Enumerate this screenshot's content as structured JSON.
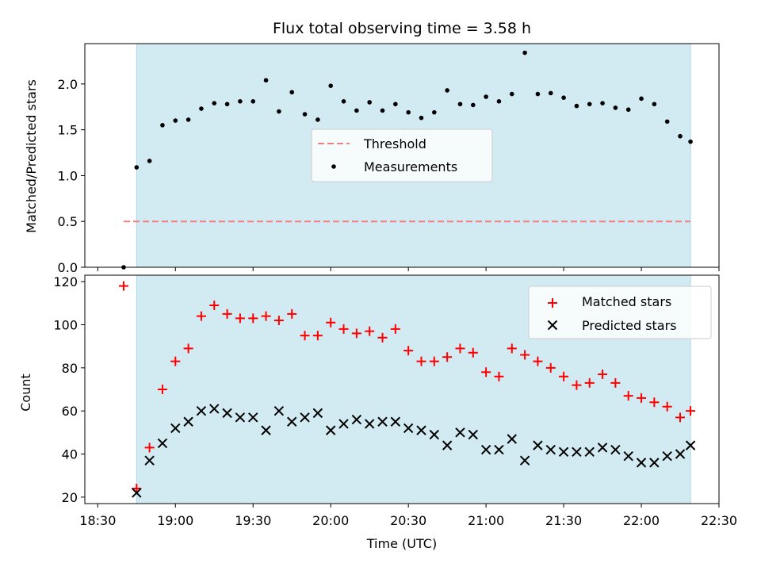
{
  "chart_data": [
    {
      "type": "scatter",
      "title": "Flux total observing time = 3.58 h",
      "ylabel": "Matched/Predicted stars",
      "xlim_minutes": [
        1105,
        1350
      ],
      "ylim": [
        0,
        2.44
      ],
      "yticks": [
        "0.0",
        "0.5",
        "1.0",
        "1.5",
        "2.0"
      ],
      "ytick_values": [
        0,
        0.5,
        1.0,
        1.5,
        2.0
      ],
      "shaded_range_minutes": [
        1125,
        1339
      ],
      "shade_color": "#add8e6",
      "threshold": {
        "name": "Threshold",
        "value": 0.5,
        "x_range_minutes": [
          1120,
          1339
        ],
        "color": "#f08080"
      },
      "legend": {
        "placement": "center",
        "entries": [
          "Threshold",
          "Measurements"
        ]
      },
      "series": [
        {
          "name": "Measurements",
          "color": "#000000",
          "x_minutes": [
            1120,
            1125,
            1130,
            1135,
            1140,
            1145,
            1150,
            1155,
            1160,
            1165,
            1170,
            1175,
            1180,
            1185,
            1190,
            1195,
            1200,
            1205,
            1210,
            1215,
            1220,
            1225,
            1230,
            1235,
            1240,
            1245,
            1250,
            1255,
            1260,
            1265,
            1270,
            1275,
            1280,
            1285,
            1290,
            1295,
            1300,
            1305,
            1310,
            1315,
            1320,
            1325,
            1330,
            1335,
            1339
          ],
          "values": [
            0.0,
            1.09,
            1.16,
            1.55,
            1.6,
            1.61,
            1.73,
            1.79,
            1.78,
            1.81,
            1.81,
            2.04,
            1.7,
            1.91,
            1.67,
            1.61,
            1.98,
            1.81,
            1.71,
            1.8,
            1.71,
            1.78,
            1.69,
            1.63,
            1.69,
            1.93,
            1.78,
            1.77,
            1.86,
            1.81,
            1.89,
            2.34,
            1.89,
            1.9,
            1.85,
            1.76,
            1.78,
            1.79,
            1.74,
            1.72,
            1.84,
            1.78,
            1.59,
            1.43,
            1.37
          ]
        }
      ]
    },
    {
      "type": "scatter",
      "xlabel": "Time (UTC)",
      "ylabel": "Count",
      "xlim_minutes": [
        1105,
        1350
      ],
      "xticks": [
        "18:30",
        "19:00",
        "19:30",
        "20:00",
        "20:30",
        "21:00",
        "21:30",
        "22:00",
        "22:30"
      ],
      "xtick_minutes": [
        1110,
        1140,
        1170,
        1200,
        1230,
        1260,
        1290,
        1320,
        1350
      ],
      "ylim": [
        17,
        123
      ],
      "yticks": [
        "20",
        "40",
        "60",
        "80",
        "100",
        "120"
      ],
      "ytick_values": [
        20,
        40,
        60,
        80,
        100,
        120
      ],
      "shaded_range_minutes": [
        1125,
        1339
      ],
      "shade_color": "#add8e6",
      "legend": {
        "placement": "upper right",
        "entries": [
          "Matched stars",
          "Predicted stars"
        ]
      },
      "series": [
        {
          "name": "Matched stars",
          "marker": "plus",
          "color": "#ff0000",
          "x_minutes": [
            1120,
            1125,
            1130,
            1135,
            1140,
            1145,
            1150,
            1155,
            1160,
            1165,
            1170,
            1175,
            1180,
            1185,
            1190,
            1195,
            1200,
            1205,
            1210,
            1215,
            1220,
            1225,
            1230,
            1235,
            1240,
            1245,
            1250,
            1255,
            1260,
            1265,
            1270,
            1275,
            1280,
            1285,
            1290,
            1295,
            1300,
            1305,
            1310,
            1315,
            1320,
            1325,
            1330,
            1335,
            1339
          ],
          "values": [
            118,
            24,
            43,
            70,
            83,
            89,
            104,
            109,
            105,
            103,
            103,
            104,
            102,
            105,
            95,
            95,
            101,
            98,
            96,
            97,
            94,
            98,
            88,
            83,
            83,
            85,
            89,
            87,
            78,
            76,
            89,
            86,
            83,
            80,
            76,
            72,
            73,
            77,
            73,
            67,
            66,
            64,
            62,
            57,
            60
          ]
        },
        {
          "name": "Predicted stars",
          "marker": "x",
          "color": "#000000",
          "x_minutes": [
            1125,
            1130,
            1135,
            1140,
            1145,
            1150,
            1155,
            1160,
            1165,
            1170,
            1175,
            1180,
            1185,
            1190,
            1195,
            1200,
            1205,
            1210,
            1215,
            1220,
            1225,
            1230,
            1235,
            1240,
            1245,
            1250,
            1255,
            1260,
            1265,
            1270,
            1275,
            1280,
            1285,
            1290,
            1295,
            1300,
            1305,
            1310,
            1315,
            1320,
            1325,
            1330,
            1335,
            1339
          ],
          "values": [
            22,
            37,
            45,
            52,
            55,
            60,
            61,
            59,
            57,
            57,
            51,
            60,
            55,
            57,
            59,
            51,
            54,
            56,
            54,
            55,
            55,
            52,
            51,
            49,
            44,
            50,
            49,
            42,
            42,
            47,
            37,
            44,
            42,
            41,
            41,
            41,
            43,
            42,
            39,
            36,
            36,
            39,
            40,
            44
          ]
        }
      ]
    }
  ]
}
